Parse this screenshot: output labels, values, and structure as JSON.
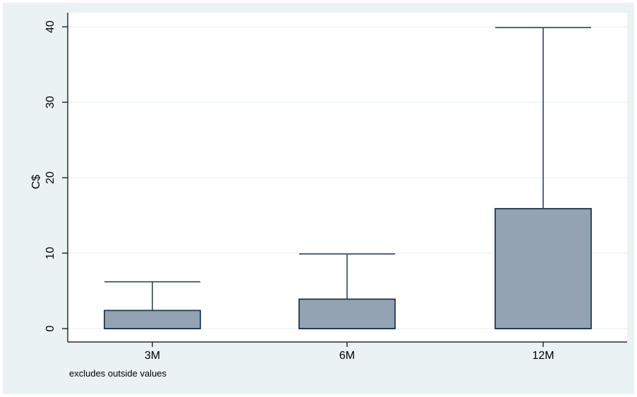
{
  "chart_data": {
    "type": "box",
    "ylabel": "C$",
    "ylim": [
      0,
      40
    ],
    "yticks": [
      0,
      10,
      20,
      30,
      40
    ],
    "grid": true,
    "categories": [
      "3M",
      "6M",
      "12M"
    ],
    "boxes": [
      {
        "label": "3M",
        "q1": 0,
        "median": 0,
        "q3": 2.4,
        "whisker_low": 0,
        "whisker_high": 6.2
      },
      {
        "label": "6M",
        "q1": 0,
        "median": 0,
        "q3": 3.9,
        "whisker_low": 0,
        "whisker_high": 9.9
      },
      {
        "label": "12M",
        "q1": 0,
        "median": 0,
        "q3": 15.9,
        "whisker_low": 0,
        "whisker_high": 39.9
      }
    ],
    "note": "excludes outside values",
    "colors": {
      "box_fill": "#93a3b4",
      "box_stroke": "#1e3a52",
      "background": "#eaf2f3",
      "plot_area": "#ffffff",
      "grid": "#eaf2f3"
    }
  }
}
